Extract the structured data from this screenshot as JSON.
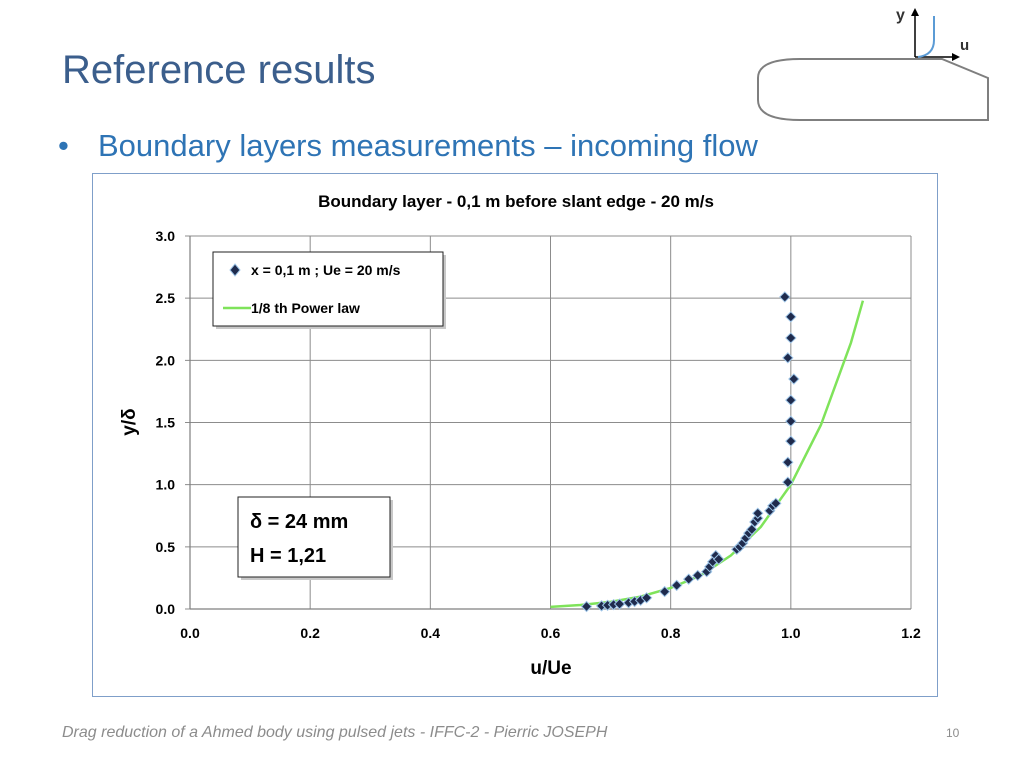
{
  "slide": {
    "title": "Reference results",
    "bullet": "Boundary layers measurements – incoming flow",
    "footer": "Drag reduction of a Ahmed body using pulsed jets  -  IFFC-2  -  Pierric JOSEPH",
    "page_number": "10"
  },
  "schematic": {
    "y_label": "y",
    "u_label": "u"
  },
  "annotation": {
    "line1": "δ = 24 mm",
    "line2": "H = 1,21"
  },
  "colors": {
    "title": "#3b5e8c",
    "bullet": "#2e74b5",
    "marker_fill": "#1f2b4d",
    "marker_stroke": "#9cc3e6",
    "power_law": "#7fe35a",
    "grid": "#8c8c8c"
  },
  "chart_data": {
    "type": "scatter",
    "title": "Boundary layer - 0,1 m before slant edge - 20 m/s",
    "xlabel": "u/Ue",
    "ylabel": "y/δ",
    "xlim": [
      0.0,
      1.2
    ],
    "ylim": [
      0.0,
      3.0
    ],
    "x_ticks": [
      "0.0",
      "0.2",
      "0.4",
      "0.6",
      "0.8",
      "1.0",
      "1.2"
    ],
    "y_ticks": [
      "0.0",
      "0.5",
      "1.0",
      "1.5",
      "2.0",
      "2.5",
      "3.0"
    ],
    "grid": true,
    "legend_position": "top-left",
    "series": [
      {
        "name": "x = 0,1 m ; Ue = 20 m/s",
        "kind": "markers",
        "marker": "diamond",
        "points": [
          [
            0.66,
            0.02
          ],
          [
            0.685,
            0.025
          ],
          [
            0.695,
            0.03
          ],
          [
            0.705,
            0.035
          ],
          [
            0.715,
            0.04
          ],
          [
            0.73,
            0.05
          ],
          [
            0.74,
            0.06
          ],
          [
            0.75,
            0.07
          ],
          [
            0.76,
            0.09
          ],
          [
            0.79,
            0.14
          ],
          [
            0.81,
            0.19
          ],
          [
            0.83,
            0.24
          ],
          [
            0.845,
            0.27
          ],
          [
            0.86,
            0.3
          ],
          [
            0.865,
            0.34
          ],
          [
            0.87,
            0.38
          ],
          [
            0.875,
            0.43
          ],
          [
            0.88,
            0.4
          ],
          [
            0.91,
            0.48
          ],
          [
            0.915,
            0.5
          ],
          [
            0.92,
            0.53
          ],
          [
            0.925,
            0.57
          ],
          [
            0.93,
            0.61
          ],
          [
            0.935,
            0.64
          ],
          [
            0.94,
            0.7
          ],
          [
            0.945,
            0.73
          ],
          [
            0.945,
            0.77
          ],
          [
            0.965,
            0.79
          ],
          [
            0.97,
            0.83
          ],
          [
            0.975,
            0.85
          ],
          [
            0.995,
            1.02
          ],
          [
            0.995,
            1.18
          ],
          [
            1.0,
            1.35
          ],
          [
            1.0,
            1.51
          ],
          [
            1.0,
            1.68
          ],
          [
            1.005,
            1.85
          ],
          [
            0.995,
            2.02
          ],
          [
            1.0,
            2.18
          ],
          [
            1.0,
            2.35
          ],
          [
            0.99,
            2.51
          ]
        ]
      },
      {
        "name": "1/8 th Power law",
        "kind": "line",
        "points": [
          [
            0.6,
            0.017
          ],
          [
            0.65,
            0.032
          ],
          [
            0.7,
            0.057
          ],
          [
            0.75,
            0.1
          ],
          [
            0.8,
            0.17
          ],
          [
            0.85,
            0.27
          ],
          [
            0.9,
            0.43
          ],
          [
            0.95,
            0.66
          ],
          [
            1.0,
            1.0
          ],
          [
            1.05,
            1.48
          ],
          [
            1.1,
            2.14
          ],
          [
            1.12,
            2.48
          ]
        ]
      }
    ]
  }
}
